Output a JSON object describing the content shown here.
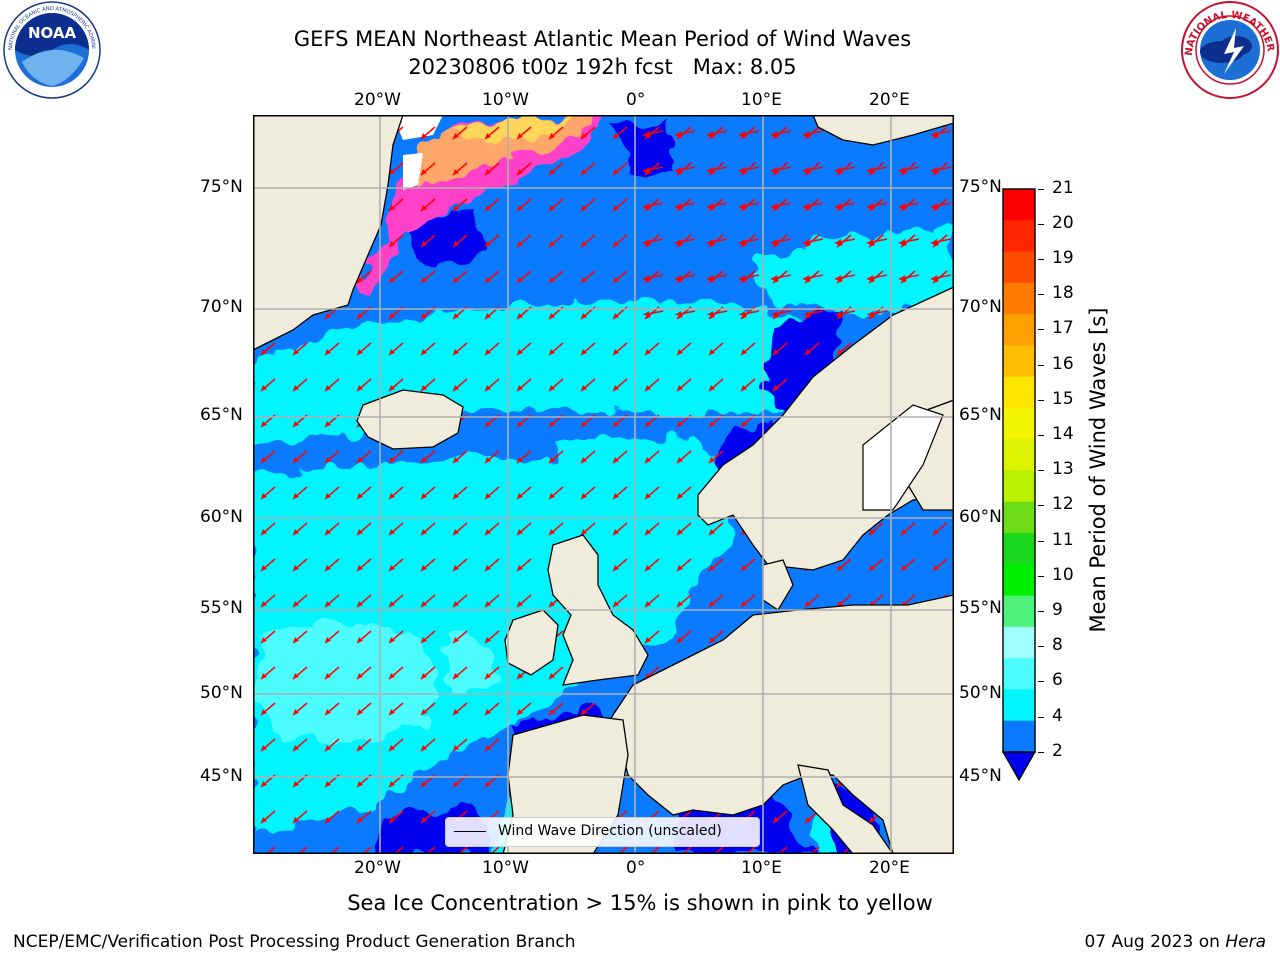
{
  "header": {
    "title_line1": "GEFS MEAN Northeast Atlantic Mean Period of Wind Waves",
    "title_line2": "20230806 t00z 192h fcst   Max: 8.05"
  },
  "logos": {
    "left": "NOAA",
    "left_ring": "NATIONAL OCEANIC AND ATMOSPHERIC ADMINISTRATION · U.S. DEPARTMENT OF COMMERCE",
    "right_ring": "NATIONAL WEATHER SERVICE"
  },
  "map": {
    "lon_ticks_top": [
      "20°W",
      "10°W",
      "0°",
      "10°E",
      "20°E"
    ],
    "lon_ticks_bottom": [
      "20°W",
      "10°W",
      "0°",
      "10°E",
      "20°E"
    ],
    "lat_ticks_left": [
      "75°N",
      "70°N",
      "65°N",
      "60°N",
      "55°N",
      "50°N",
      "45°N"
    ],
    "lat_ticks_right": [
      "75°N",
      "70°N",
      "65°N",
      "60°N",
      "55°N",
      "50°N",
      "45°N"
    ],
    "legend_label": "Wind Wave Direction (unscaled)",
    "colors": {
      "land": "#efecdc",
      "deep_blue": "#0000f0",
      "blue": "#0a7bff",
      "cyan": "#00f5ff",
      "light_cyan": "#4dfcff",
      "arrow": "#ff0000"
    }
  },
  "colorbar": {
    "label": "Mean Period of Wind Waves [s]",
    "ticks": [
      "21",
      "20",
      "19",
      "18",
      "17",
      "16",
      "15",
      "14",
      "13",
      "12",
      "11",
      "10",
      "9",
      "8",
      "6",
      "4",
      "2"
    ],
    "colors": [
      "#ff0000",
      "#ff2600",
      "#ff4d00",
      "#ff7a00",
      "#ff9f00",
      "#ffbf00",
      "#ffe600",
      "#f2f400",
      "#dcf200",
      "#b8f000",
      "#6ddd1a",
      "#19d81d",
      "#00ef00",
      "#4cf27a",
      "#a0ffff",
      "#4dfcff",
      "#00f5ff",
      "#0a7bff"
    ],
    "extend_color": "#0000f0"
  },
  "footer": {
    "note": "Sea Ice Concentration > 15% is shown in pink to yellow",
    "credit": "NCEP/EMC/Verification Post Processing Product Generation Branch",
    "date": "07 Aug 2023 on ",
    "machine": "Hera"
  }
}
